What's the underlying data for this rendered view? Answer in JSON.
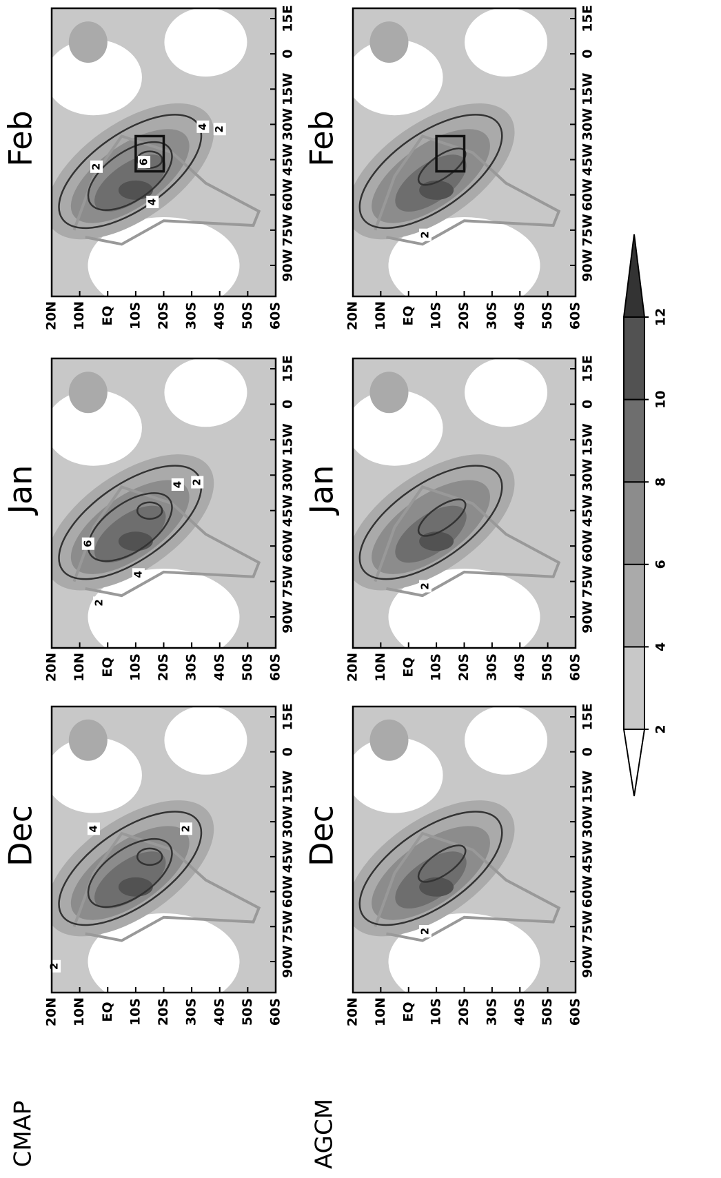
{
  "columns": [
    "Dec",
    "Jan",
    "Feb"
  ],
  "rows": [
    "CMAP",
    "AGCM"
  ],
  "lat_ticks": [
    "20N",
    "10N",
    "EQ",
    "10S",
    "20S",
    "30S",
    "40S",
    "50S",
    "60S"
  ],
  "lon_ticks": [
    "90W",
    "75W",
    "60W",
    "45W",
    "30W",
    "15W",
    "0",
    "15E"
  ],
  "panels": [
    {
      "contour_labels": [
        "2",
        "4",
        "2"
      ]
    },
    {
      "contour_labels": [
        "2",
        "6",
        "4",
        "4",
        "2"
      ]
    },
    {
      "contour_labels": [
        "2",
        "4",
        "6",
        "4",
        "2"
      ]
    },
    {
      "contour_labels": [
        "2"
      ]
    },
    {
      "contour_labels": [
        "2"
      ]
    },
    {
      "contour_labels": [
        "2"
      ]
    }
  ],
  "colorbar": {
    "ticks": [
      2,
      4,
      6,
      8,
      10,
      12
    ],
    "colors": [
      "#ffffff",
      "#c8c8c8",
      "#aaaaaa",
      "#8c8c8c",
      "#6e6e6e",
      "#525252",
      "#333333"
    ]
  }
}
